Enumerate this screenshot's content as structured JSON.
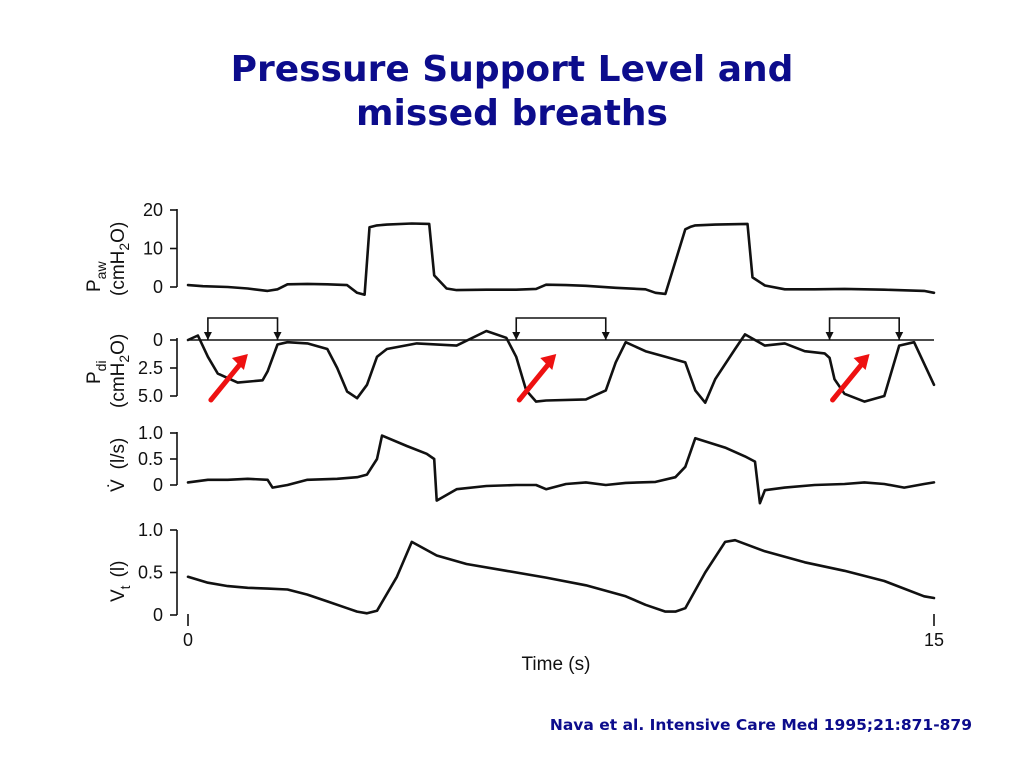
{
  "slide": {
    "title_line1": "Pressure Support Level and",
    "title_line2": "missed breaths",
    "citation": "Nava et al. Intensive Care Med 1995;21:871-879"
  },
  "colors": {
    "title": "#0c0c8c",
    "arrow": "#ee1111",
    "trace": "#111111"
  },
  "chart_data": [
    {
      "type": "line",
      "panel": "paw",
      "ylabel_main": "P",
      "ylabel_sub": "aw",
      "ylabel_unit_a": "(cmH",
      "ylabel_unit_sub": "2",
      "ylabel_unit_b": "O)",
      "yticks": [
        "20",
        "10",
        "0"
      ],
      "ytick_values": [
        20,
        10,
        0
      ],
      "ylim": [
        0,
        20
      ],
      "series": [
        {
          "x": [
            0,
            0.3,
            0.8,
            1.2,
            1.6,
            1.8,
            2.0,
            2.4,
            2.8,
            3.2,
            3.4,
            3.55,
            3.65,
            3.8,
            4.0,
            4.5,
            4.85,
            4.95,
            5.2,
            5.4,
            6.0,
            6.6,
            7.0,
            7.2,
            7.6,
            8.0,
            8.6,
            9.2,
            9.4,
            9.6,
            10.0,
            10.1,
            10.2,
            10.6,
            11.25,
            11.35,
            11.6,
            12.0,
            12.6,
            13.2,
            14.0,
            14.8,
            15
          ],
          "y": [
            0.5,
            0.2,
            0,
            -0.4,
            -1.0,
            -0.6,
            0.7,
            0.8,
            0.7,
            0.5,
            -1.5,
            -2.0,
            15.5,
            16.0,
            16.2,
            16.5,
            16.4,
            3.0,
            -0.4,
            -0.8,
            -0.7,
            -0.7,
            -0.5,
            0.6,
            0.5,
            0.3,
            -0.2,
            -0.6,
            -1.5,
            -1.8,
            15.0,
            15.6,
            16.0,
            16.2,
            16.4,
            2.5,
            0.4,
            -0.6,
            -0.6,
            -0.5,
            -0.7,
            -1.0,
            -1.5
          ]
        }
      ]
    },
    {
      "type": "line",
      "panel": "pdi",
      "ylabel_main": "P",
      "ylabel_sub": "di",
      "ylabel_unit_a": "(cmH",
      "ylabel_unit_sub": "2",
      "ylabel_unit_b": "O)",
      "yticks": [
        "0",
        "2.5",
        "5.0"
      ],
      "ytick_values": [
        0,
        2.5,
        5
      ],
      "ylim": [
        5,
        0
      ],
      "baseline": 0,
      "series": [
        {
          "x": [
            0,
            0.2,
            0.4,
            0.6,
            1.0,
            1.5,
            1.6,
            1.8,
            2.0,
            2.4,
            2.8,
            3.0,
            3.2,
            3.4,
            3.6,
            3.8,
            4.0,
            4.6,
            5.4,
            6.0,
            6.4,
            6.6,
            6.8,
            7.0,
            7.2,
            8.0,
            8.4,
            8.6,
            8.8,
            9.2,
            9.6,
            10.0,
            10.2,
            10.4,
            10.6,
            11.0,
            11.2,
            11.6,
            12.0,
            12.4,
            12.8,
            12.9,
            13.0,
            13.2,
            13.6,
            14.0,
            14.3,
            14.6,
            15
          ],
          "y": [
            0,
            -0.4,
            1.5,
            3.0,
            3.8,
            3.6,
            2.8,
            0.4,
            0.2,
            0.3,
            0.8,
            2.5,
            4.6,
            5.2,
            4.0,
            1.5,
            0.8,
            0.3,
            0.5,
            -0.8,
            -0.2,
            1.5,
            4.5,
            5.5,
            5.4,
            5.3,
            4.5,
            2.0,
            0.2,
            1.0,
            1.5,
            2.0,
            4.5,
            5.6,
            3.5,
            0.8,
            -0.5,
            0.5,
            0.3,
            1.0,
            1.2,
            1.6,
            3.5,
            4.8,
            5.5,
            5.0,
            0.5,
            0.2,
            4.0
          ]
        }
      ],
      "breath_markers": [
        [
          0.4,
          1.8
        ],
        [
          6.6,
          8.4
        ],
        [
          12.9,
          14.3
        ]
      ]
    },
    {
      "type": "line",
      "panel": "flow",
      "ylabel_main": "V̇",
      "ylabel_unit": "(l/s)",
      "yticks": [
        "1.0",
        "0.5",
        "0"
      ],
      "ytick_values": [
        1,
        0.5,
        0
      ],
      "ylim": [
        0,
        1
      ],
      "series": [
        {
          "x": [
            0,
            0.4,
            0.8,
            1.2,
            1.6,
            1.7,
            2.0,
            2.4,
            3.0,
            3.4,
            3.6,
            3.8,
            3.9,
            4.4,
            4.8,
            4.95,
            5.0,
            5.4,
            6.0,
            6.6,
            7.0,
            7.2,
            7.6,
            8.0,
            8.4,
            8.8,
            9.4,
            9.8,
            10.0,
            10.2,
            10.8,
            11.2,
            11.4,
            11.5,
            11.6,
            12.0,
            12.6,
            13.2,
            13.6,
            14.0,
            14.4,
            14.8,
            15
          ],
          "y": [
            0.05,
            0.1,
            0.1,
            0.12,
            0.1,
            -0.05,
            0.0,
            0.1,
            0.12,
            0.15,
            0.2,
            0.5,
            0.95,
            0.75,
            0.6,
            0.5,
            -0.3,
            -0.08,
            -0.02,
            0.0,
            0.0,
            -0.08,
            0.02,
            0.05,
            0.0,
            0.04,
            0.06,
            0.15,
            0.35,
            0.9,
            0.72,
            0.55,
            0.45,
            -0.35,
            -0.1,
            -0.05,
            0.0,
            0.02,
            0.05,
            0.02,
            -0.05,
            0.02,
            0.05
          ]
        }
      ]
    },
    {
      "type": "line",
      "panel": "volume",
      "ylabel_main": "V",
      "ylabel_sub": "t",
      "ylabel_unit": "(l)",
      "yticks": [
        "1.0",
        "0.5",
        "0"
      ],
      "ytick_values": [
        1,
        0.5,
        0
      ],
      "ylim": [
        0,
        1
      ],
      "xticks": [
        "0",
        "15"
      ],
      "xtick_values": [
        0,
        15
      ],
      "xlabel": "Time  (s)",
      "xlim": [
        0,
        15
      ],
      "series": [
        {
          "x": [
            0,
            0.4,
            0.8,
            1.2,
            1.6,
            2.0,
            2.4,
            2.8,
            3.2,
            3.4,
            3.6,
            3.8,
            4.2,
            4.5,
            5.0,
            5.6,
            6.4,
            7.2,
            8.0,
            8.8,
            9.2,
            9.6,
            9.8,
            10.0,
            10.4,
            10.8,
            11.0,
            11.6,
            12.4,
            13.2,
            14.0,
            14.8,
            15
          ],
          "y": [
            0.45,
            0.38,
            0.34,
            0.32,
            0.31,
            0.3,
            0.24,
            0.16,
            0.08,
            0.04,
            0.02,
            0.05,
            0.45,
            0.86,
            0.7,
            0.6,
            0.52,
            0.44,
            0.35,
            0.22,
            0.12,
            0.04,
            0.04,
            0.08,
            0.5,
            0.86,
            0.88,
            0.75,
            0.62,
            0.52,
            0.4,
            0.22,
            0.2
          ]
        }
      ]
    }
  ]
}
